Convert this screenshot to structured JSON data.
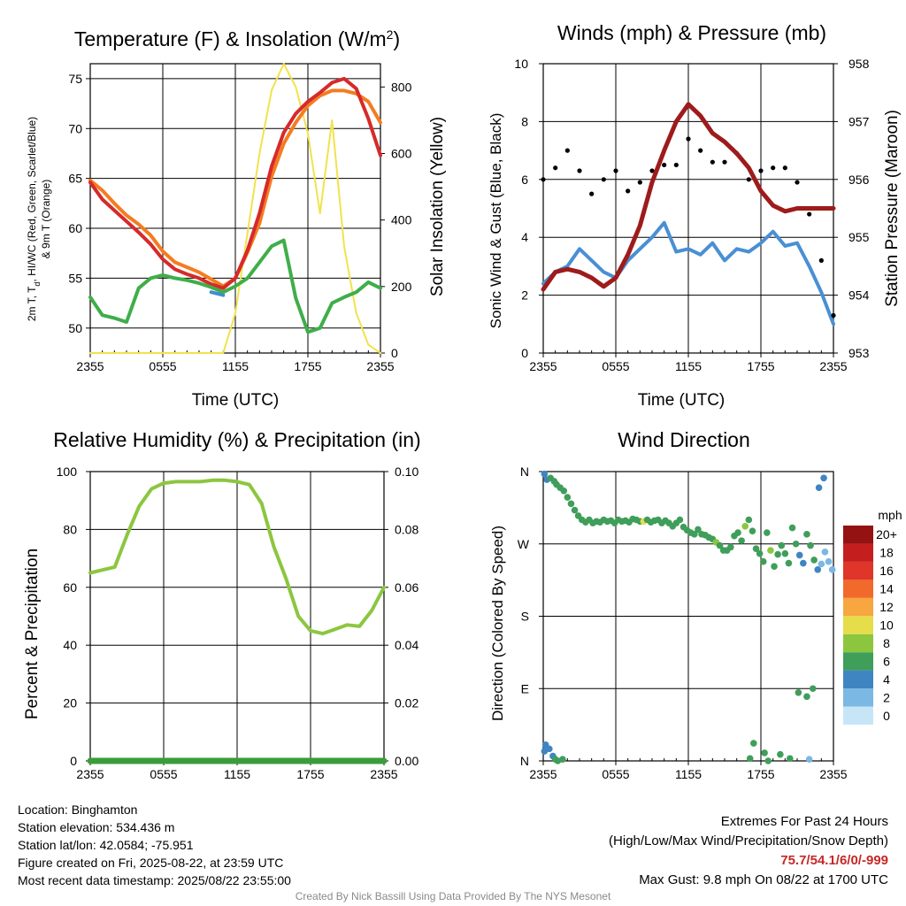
{
  "chart_data": [
    {
      "id": "temp",
      "type": "line",
      "title": "Temperature (F) & Insolation (W/m",
      "title_sup": "2",
      "title_end": ")",
      "xlabel": "Time (UTC)",
      "ylabel_lines": [
        "2m T, Tₐ, HI/WC (Red, Green, Scarlet/Blue)",
        "& 9m T (Orange)"
      ],
      "ylabel_line1_a": "2m T, T",
      "ylabel_line1_sub": "d",
      "ylabel_line1_b": ", HI/WC (Red, Green, Scarlet/Blue)",
      "ylabel_line2": "& 9m T (Orange)",
      "y2label": "Solar Insolation (Yellow)",
      "x_ticks": [
        "2355",
        "0555",
        "1155",
        "1755",
        "2355"
      ],
      "ylim": [
        47.5,
        76.5
      ],
      "y_ticks": [
        50,
        55,
        60,
        65,
        70,
        75
      ],
      "y2lim": [
        0,
        870
      ],
      "y2_ticks": [
        0,
        200,
        400,
        600,
        800
      ],
      "x_hours": [
        0,
        1,
        2,
        3,
        4,
        5,
        6,
        7,
        8,
        9,
        10,
        11,
        12,
        13,
        14,
        15,
        16,
        17,
        18,
        19,
        20,
        21,
        22,
        23,
        24
      ],
      "series": [
        {
          "color": "#f47c20",
          "axis": "left",
          "values": [
            64.8,
            63.8,
            62.5,
            61.3,
            60.4,
            59.3,
            57.7,
            56.6,
            56.1,
            55.6,
            54.9,
            54.2,
            55.0,
            57.6,
            60.5,
            65.2,
            68.5,
            70.6,
            72.3,
            73.3,
            73.8,
            73.8,
            73.5,
            72.7,
            70.6
          ]
        },
        {
          "color": "#d62a2a",
          "axis": "left",
          "values": [
            64.6,
            62.9,
            61.8,
            60.7,
            59.6,
            58.4,
            56.9,
            55.9,
            55.4,
            55.0,
            54.4,
            54.0,
            55.0,
            57.8,
            61.5,
            66.2,
            69.6,
            71.5,
            72.7,
            73.6,
            74.6,
            75.0,
            74.0,
            71.0,
            67.3
          ]
        },
        {
          "color": "#3b8fd0",
          "axis": "left",
          "values": [
            null,
            null,
            null,
            null,
            null,
            null,
            null,
            null,
            null,
            null,
            53.6,
            53.3,
            null,
            null,
            null,
            null,
            null,
            null,
            null,
            null,
            null,
            null,
            null,
            null,
            null
          ]
        },
        {
          "color": "#3fae49",
          "axis": "left",
          "values": [
            53.1,
            51.3,
            51.0,
            50.6,
            54.0,
            55.0,
            55.3,
            55.0,
            54.8,
            54.5,
            54.1,
            53.6,
            54.2,
            55.0,
            56.6,
            58.2,
            58.8,
            53.0,
            49.6,
            50.0,
            52.5,
            53.1,
            53.6,
            54.6,
            54.0
          ]
        },
        {
          "color": "#f2e24c",
          "axis": "right",
          "values": [
            0,
            0,
            0,
            0,
            0,
            0,
            0,
            0,
            0,
            0,
            0,
            0,
            120,
            360,
            600,
            790,
            870,
            800,
            660,
            420,
            700,
            320,
            120,
            25,
            0
          ]
        }
      ]
    },
    {
      "id": "wind",
      "type": "line",
      "title": "Winds (mph) & Pressure (mb)",
      "xlabel": "Time (UTC)",
      "ylabel": "Sonic Wind & Gust (Blue, Black)",
      "y2label": "Station Pressure (Maroon)",
      "x_ticks": [
        "2355",
        "0555",
        "1155",
        "1755",
        "2355"
      ],
      "ylim": [
        0,
        10
      ],
      "y_ticks": [
        0,
        2,
        4,
        6,
        8,
        10
      ],
      "y2lim": [
        953,
        958
      ],
      "y2_ticks": [
        953,
        954,
        955,
        956,
        957,
        958
      ],
      "x_hours": [
        0,
        1,
        2,
        3,
        4,
        5,
        6,
        7,
        8,
        9,
        10,
        11,
        12,
        13,
        14,
        15,
        16,
        17,
        18,
        19,
        20,
        21,
        22,
        23,
        24
      ],
      "series": [
        {
          "color": "#4a8fd4",
          "axis": "left",
          "values": [
            2.4,
            2.8,
            3.0,
            3.6,
            3.2,
            2.8,
            2.6,
            3.2,
            3.6,
            4.0,
            4.5,
            3.5,
            3.6,
            3.4,
            3.8,
            3.2,
            3.6,
            3.5,
            3.8,
            4.2,
            3.7,
            3.8,
            3.0,
            2.1,
            1.0
          ]
        },
        {
          "color": "#9e1b1b",
          "axis": "right",
          "values": [
            954.1,
            954.4,
            954.45,
            954.4,
            954.3,
            954.15,
            954.3,
            954.7,
            955.2,
            955.95,
            956.5,
            957.0,
            957.3,
            957.1,
            956.8,
            956.65,
            956.45,
            956.2,
            955.8,
            955.55,
            955.45,
            955.5,
            955.5,
            955.5,
            955.5
          ]
        },
        {
          "color": "#000000",
          "axis": "left",
          "type": "scatter",
          "values": [
            6.0,
            6.4,
            7.0,
            6.3,
            5.5,
            6.0,
            6.3,
            5.6,
            5.9,
            6.3,
            6.5,
            6.5,
            7.4,
            7.0,
            6.6,
            6.6,
            6.9,
            6.0,
            6.3,
            6.4,
            6.4,
            5.9,
            4.8,
            3.2,
            1.3
          ]
        }
      ]
    },
    {
      "id": "rh",
      "type": "line",
      "title": "Relative Humidity (%) & Precipitation (in)",
      "ylabel": "Percent & Precipitation",
      "x_ticks": [
        "2355",
        "0555",
        "1155",
        "1755",
        "2355"
      ],
      "ylim": [
        0,
        100
      ],
      "y_ticks": [
        0,
        20,
        40,
        60,
        80,
        100
      ],
      "y2lim": [
        0,
        0.1
      ],
      "y2_ticks": [
        "0.00",
        "0.02",
        "0.04",
        "0.06",
        "0.08",
        "0.10"
      ],
      "x_hours": [
        0,
        1,
        2,
        3,
        4,
        5,
        6,
        7,
        8,
        9,
        10,
        11,
        12,
        13,
        14,
        15,
        16,
        17,
        18,
        19,
        20,
        21,
        22,
        23,
        24
      ],
      "series": [
        {
          "color": "#8cc63f",
          "axis": "left",
          "values": [
            65,
            66,
            67,
            78,
            88,
            94,
            96,
            96.5,
            96.5,
            96.5,
            97,
            97,
            96.5,
            95.5,
            89,
            74,
            63,
            50,
            45,
            44,
            45.5,
            47,
            46.5,
            52,
            60
          ]
        },
        {
          "color": "#3a9d3a",
          "axis": "right",
          "values": [
            0,
            0,
            0,
            0,
            0,
            0,
            0,
            0,
            0,
            0,
            0,
            0,
            0,
            0,
            0,
            0,
            0,
            0,
            0,
            0,
            0,
            0,
            0,
            0,
            0
          ]
        }
      ]
    },
    {
      "id": "wdir",
      "type": "scatter",
      "title": "Wind Direction",
      "ylabel": "Direction (Colored By Speed)",
      "x_ticks": [
        "2355",
        "0555",
        "1155",
        "1755",
        "2355"
      ],
      "y_ticks": [
        "N",
        "E",
        "S",
        "W",
        "N"
      ],
      "ylim": [
        0,
        360
      ],
      "colorbar_title": "mph",
      "colorbar_labels": [
        "0",
        "2",
        "4",
        "6",
        "8",
        "10",
        "12",
        "14",
        "16",
        "18",
        "20+"
      ],
      "colorbar_colors": [
        "#c6e6f7",
        "#7bb8e3",
        "#3f85c2",
        "#3f9e5a",
        "#8cc63f",
        "#e6dd4a",
        "#f7a640",
        "#f26a2b",
        "#e0362a",
        "#c41e1e",
        "#951212"
      ],
      "points": [
        [
          0.1,
          357
        ],
        [
          0.3,
          350
        ],
        [
          0.6,
          352
        ],
        [
          0.9,
          348
        ],
        [
          1.1,
          344
        ],
        [
          1.4,
          340
        ],
        [
          1.7,
          336
        ],
        [
          2.0,
          328
        ],
        [
          2.3,
          320
        ],
        [
          2.6,
          312
        ],
        [
          2.9,
          305
        ],
        [
          3.2,
          300
        ],
        [
          3.5,
          297
        ],
        [
          3.8,
          300
        ],
        [
          4.1,
          296
        ],
        [
          4.4,
          298
        ],
        [
          4.7,
          297
        ],
        [
          5.0,
          300
        ],
        [
          5.3,
          298
        ],
        [
          5.6,
          299
        ],
        [
          5.9,
          296
        ],
        [
          6.2,
          300
        ],
        [
          6.5,
          298
        ],
        [
          6.8,
          299
        ],
        [
          7.1,
          297
        ],
        [
          7.4,
          301
        ],
        [
          7.7,
          300
        ],
        [
          8.0,
          298
        ],
        [
          8.3,
          298
        ],
        [
          8.6,
          300
        ],
        [
          8.9,
          297
        ],
        [
          9.2,
          299
        ],
        [
          9.5,
          300
        ],
        [
          9.8,
          296
        ],
        [
          10.1,
          299
        ],
        [
          10.4,
          296
        ],
        [
          10.7,
          292
        ],
        [
          11.0,
          296
        ],
        [
          11.3,
          300
        ],
        [
          11.6,
          291
        ],
        [
          11.9,
          287
        ],
        [
          12.2,
          284
        ],
        [
          12.5,
          282
        ],
        [
          12.8,
          288
        ],
        [
          13.1,
          282
        ],
        [
          13.4,
          281
        ],
        [
          13.7,
          278
        ],
        [
          14.0,
          276
        ],
        [
          14.3,
          272
        ],
        [
          14.6,
          268
        ],
        [
          14.9,
          262
        ],
        [
          15.2,
          262
        ],
        [
          15.5,
          266
        ],
        [
          15.8,
          280
        ],
        [
          16.1,
          284
        ],
        [
          16.4,
          274
        ],
        [
          16.7,
          292
        ],
        [
          17.0,
          300
        ],
        [
          17.3,
          286
        ],
        [
          17.6,
          264
        ],
        [
          17.9,
          258
        ],
        [
          18.2,
          248
        ],
        [
          18.5,
          284
        ],
        [
          18.8,
          262
        ],
        [
          19.1,
          242
        ],
        [
          19.4,
          257
        ],
        [
          19.7,
          268
        ],
        [
          20.0,
          258
        ],
        [
          20.3,
          246
        ],
        [
          20.6,
          290
        ],
        [
          20.9,
          270
        ],
        [
          21.2,
          256
        ],
        [
          21.5,
          246
        ],
        [
          21.8,
          282
        ],
        [
          22.1,
          268
        ],
        [
          22.4,
          250
        ],
        [
          22.7,
          238
        ],
        [
          23.0,
          245
        ],
        [
          23.3,
          260
        ],
        [
          23.6,
          248
        ],
        [
          23.9,
          238
        ],
        [
          0.1,
          12
        ],
        [
          0.2,
          20
        ],
        [
          0.5,
          15
        ],
        [
          0.8,
          6
        ],
        [
          1.0,
          2
        ],
        [
          1.2,
          0
        ],
        [
          1.6,
          2
        ],
        [
          17.1,
          3
        ],
        [
          17.4,
          22
        ],
        [
          18.3,
          10
        ],
        [
          18.6,
          0
        ],
        [
          19.6,
          8
        ],
        [
          20.4,
          3
        ],
        [
          21.1,
          85
        ],
        [
          21.8,
          80
        ],
        [
          22.3,
          90
        ],
        [
          22.8,
          340
        ],
        [
          23.2,
          352
        ],
        [
          22.0,
          2
        ]
      ],
      "point_levels": [
        2,
        2,
        3,
        3,
        3,
        3,
        3,
        3,
        3,
        3,
        3,
        3,
        3,
        3,
        3,
        3,
        3,
        3,
        3,
        3,
        3,
        3,
        3,
        3,
        3,
        3,
        3,
        3,
        5,
        3,
        3,
        3,
        3,
        3,
        3,
        3,
        3,
        3,
        3,
        3,
        3,
        3,
        3,
        3,
        3,
        3,
        3,
        3,
        4,
        3,
        3,
        3,
        3,
        3,
        3,
        3,
        4,
        3,
        3,
        3,
        3,
        3,
        3,
        4,
        3,
        3,
        3,
        3,
        3,
        3,
        3,
        2,
        2,
        3,
        3,
        3,
        2,
        1,
        1,
        1,
        1,
        2,
        2,
        2,
        2,
        3,
        3,
        3,
        3,
        3,
        3,
        3,
        3,
        3,
        3,
        3,
        3,
        2,
        2,
        1
      ]
    }
  ],
  "info": {
    "location": "Location: Binghamton",
    "elevation": "Station elevation: 534.436 m",
    "latlon": "Station lat/lon: 42.0584; -75.951",
    "created": "Figure created on Fri, 2025-08-22, at 23:59 UTC",
    "recent": "Most recent data timestamp: 2025/08/22 23:55:00"
  },
  "extremes": {
    "title": "Extremes For Past 24 Hours",
    "subtitle": "(High/Low/Max Wind/Precipitation/Snow Depth)",
    "values": "75.7/54.1/6/0/-999",
    "gust": "Max Gust: 9.8 mph On 08/22 at 1700 UTC"
  },
  "footer": "Created By Nick Bassill Using Data Provided By The NYS Mesonet"
}
